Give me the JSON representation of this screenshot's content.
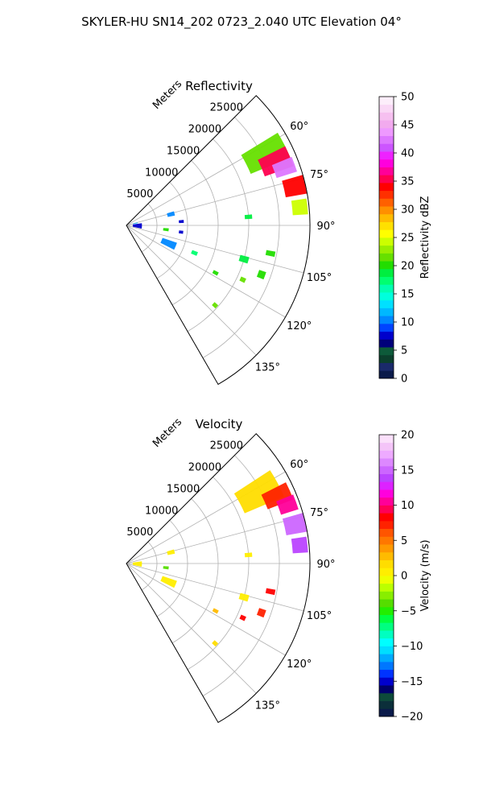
{
  "figure": {
    "title": "SKYLER-HU  SN14_202  0723_2.040 UTC Elevation 04°"
  },
  "chart_data": [
    {
      "type": "polar-sector",
      "title": "Reflectivity",
      "radial_label": "Meters",
      "radial_ticks": [
        "5000",
        "10000",
        "15000",
        "20000",
        "25000"
      ],
      "radial_tick_values": [
        5000,
        10000,
        15000,
        20000,
        25000
      ],
      "angle_ticks": [
        "60°",
        "75°",
        "90°",
        "105°",
        "120°",
        "135°"
      ],
      "angle_tick_values": [
        60,
        75,
        90,
        105,
        120,
        135
      ],
      "theta_range_deg": [
        45,
        150
      ],
      "r_range_m": [
        0,
        30000
      ],
      "grid": true,
      "colorbar": {
        "label": "Reflectivity dBZ",
        "range": [
          0,
          50
        ],
        "ticks": [
          "0",
          "5",
          "10",
          "15",
          "20",
          "25",
          "30",
          "35",
          "40",
          "45",
          "50"
        ],
        "tick_values": [
          0,
          5,
          10,
          15,
          20,
          25,
          30,
          35,
          40,
          45,
          50
        ],
        "colors": [
          "#0a1a4a",
          "#1a2a6a",
          "#0b3f2c",
          "#0d5a3a",
          "#00007a",
          "#0000cc",
          "#0044ff",
          "#0088ff",
          "#00b8ff",
          "#00e0ff",
          "#00ffdd",
          "#00ffb0",
          "#00ff70",
          "#00ee40",
          "#22dd00",
          "#66e000",
          "#99ee00",
          "#ccff00",
          "#ffff00",
          "#ffe000",
          "#ffbb00",
          "#ff9000",
          "#ff6000",
          "#ff3000",
          "#ff0000",
          "#ff0050",
          "#ff0099",
          "#ff00dd",
          "#ee22ff",
          "#cc55ff",
          "#dd77ff",
          "#ee99ff",
          "#f2aaee",
          "#f6c0f0",
          "#fad8f6",
          "#fdeefb"
        ]
      },
      "echoes": [
        {
          "theta": 63,
          "r": 25500,
          "dtheta": 9,
          "dr": 7000,
          "value": 22
        },
        {
          "theta": 67,
          "r": 26500,
          "dtheta": 7,
          "dr": 5000,
          "value": 36
        },
        {
          "theta": 70,
          "r": 27500,
          "dtheta": 5,
          "dr": 3500,
          "value": 42
        },
        {
          "theta": 77,
          "r": 28200,
          "dtheta": 6,
          "dr": 3500,
          "value": 34
        },
        {
          "theta": 84,
          "r": 28500,
          "dtheta": 5,
          "dr": 2500,
          "value": 24
        },
        {
          "theta": 76,
          "r": 7500,
          "dtheta": 5,
          "dr": 1200,
          "value": 10
        },
        {
          "theta": 86,
          "r": 9000,
          "dtheta": 3,
          "dr": 800,
          "value": 7
        },
        {
          "theta": 96,
          "r": 6500,
          "dtheta": 4,
          "dr": 900,
          "value": 20
        },
        {
          "theta": 97,
          "r": 9000,
          "dtheta": 3,
          "dr": 700,
          "value": 8
        },
        {
          "theta": 113,
          "r": 7500,
          "dtheta": 8,
          "dr": 2500,
          "value": 10
        },
        {
          "theta": 112,
          "r": 12000,
          "dtheta": 3,
          "dr": 1000,
          "value": 18
        },
        {
          "theta": 106,
          "r": 20000,
          "dtheta": 3,
          "dr": 1500,
          "value": 19
        },
        {
          "theta": 101,
          "r": 24000,
          "dtheta": 2,
          "dr": 1500,
          "value": 20
        },
        {
          "theta": 110,
          "r": 23500,
          "dtheta": 3,
          "dr": 1200,
          "value": 20
        },
        {
          "theta": 86,
          "r": 20000,
          "dtheta": 2,
          "dr": 1200,
          "value": 19
        },
        {
          "theta": 132,
          "r": 19500,
          "dtheta": 2,
          "dr": 800,
          "value": 22
        },
        {
          "theta": 115,
          "r": 21000,
          "dtheta": 2,
          "dr": 900,
          "value": 22
        },
        {
          "theta": 118,
          "r": 16500,
          "dtheta": 2,
          "dr": 900,
          "value": 20
        },
        {
          "theta": 92,
          "r": 1800,
          "dtheta": 20,
          "dr": 1500,
          "value": 8
        },
        {
          "theta": 77,
          "r": 1500,
          "dtheta": 4,
          "dr": 800,
          "value": 12
        }
      ]
    },
    {
      "type": "polar-sector",
      "title": "Velocity",
      "radial_label": "Meters",
      "radial_ticks": [
        "5000",
        "10000",
        "15000",
        "20000",
        "25000"
      ],
      "radial_tick_values": [
        5000,
        10000,
        15000,
        20000,
        25000
      ],
      "angle_ticks": [
        "60°",
        "75°",
        "90°",
        "105°",
        "120°",
        "135°"
      ],
      "angle_tick_values": [
        60,
        75,
        90,
        105,
        120,
        135
      ],
      "theta_range_deg": [
        45,
        150
      ],
      "r_range_m": [
        0,
        30000
      ],
      "grid": true,
      "colorbar": {
        "label": "Velocity (m/s)",
        "range": [
          -20,
          20
        ],
        "ticks": [
          "−20",
          "−15",
          "−10",
          "−5",
          "0",
          "5",
          "10",
          "15",
          "20"
        ],
        "tick_values": [
          -20,
          -15,
          -10,
          -5,
          0,
          5,
          10,
          15,
          20
        ],
        "colors": [
          "#0a1a4a",
          "#0b2f3a",
          "#0d4a3a",
          "#00006a",
          "#0000cc",
          "#0033ff",
          "#0077ff",
          "#00aaff",
          "#00ddff",
          "#00ffff",
          "#00ffc0",
          "#00ff80",
          "#00ff40",
          "#22ee00",
          "#55dd00",
          "#88ee00",
          "#bbff00",
          "#eeff00",
          "#ffee00",
          "#ffdd00",
          "#ffbb00",
          "#ff9900",
          "#ff7700",
          "#ff5500",
          "#ff2200",
          "#ff0000",
          "#ff0055",
          "#ff0099",
          "#ff00dd",
          "#dd22ff",
          "#bb44ff",
          "#cc66ff",
          "#dd88ff",
          "#eeaaff",
          "#f4c4f8",
          "#fbe0fb"
        ]
      },
      "echoes": [
        {
          "theta": 62,
          "r": 24500,
          "dtheta": 10,
          "dr": 7000,
          "value": 2
        },
        {
          "theta": 66,
          "r": 27000,
          "dtheta": 6,
          "dr": 4500,
          "value": 7
        },
        {
          "theta": 70,
          "r": 28000,
          "dtheta": 5,
          "dr": 3000,
          "value": 10
        },
        {
          "theta": 77,
          "r": 28300,
          "dtheta": 6,
          "dr": 3500,
          "value": 15
        },
        {
          "theta": 84,
          "r": 28500,
          "dtheta": 5,
          "dr": 2500,
          "value": 14
        },
        {
          "theta": 76,
          "r": 7500,
          "dtheta": 5,
          "dr": 1200,
          "value": 0
        },
        {
          "theta": 96,
          "r": 6500,
          "dtheta": 4,
          "dr": 900,
          "value": -4
        },
        {
          "theta": 113,
          "r": 7500,
          "dtheta": 8,
          "dr": 2500,
          "value": 1
        },
        {
          "theta": 106,
          "r": 20000,
          "dtheta": 3,
          "dr": 1500,
          "value": 0
        },
        {
          "theta": 101,
          "r": 24000,
          "dtheta": 2,
          "dr": 1500,
          "value": 8
        },
        {
          "theta": 110,
          "r": 23500,
          "dtheta": 3,
          "dr": 1200,
          "value": 7
        },
        {
          "theta": 86,
          "r": 20000,
          "dtheta": 2,
          "dr": 1200,
          "value": 0
        },
        {
          "theta": 132,
          "r": 19500,
          "dtheta": 2,
          "dr": 800,
          "value": 2
        },
        {
          "theta": 115,
          "r": 21000,
          "dtheta": 2,
          "dr": 900,
          "value": 8
        },
        {
          "theta": 118,
          "r": 16500,
          "dtheta": 2,
          "dr": 900,
          "value": 3
        },
        {
          "theta": 92,
          "r": 1800,
          "dtheta": 20,
          "dr": 1500,
          "value": 1
        }
      ]
    }
  ]
}
